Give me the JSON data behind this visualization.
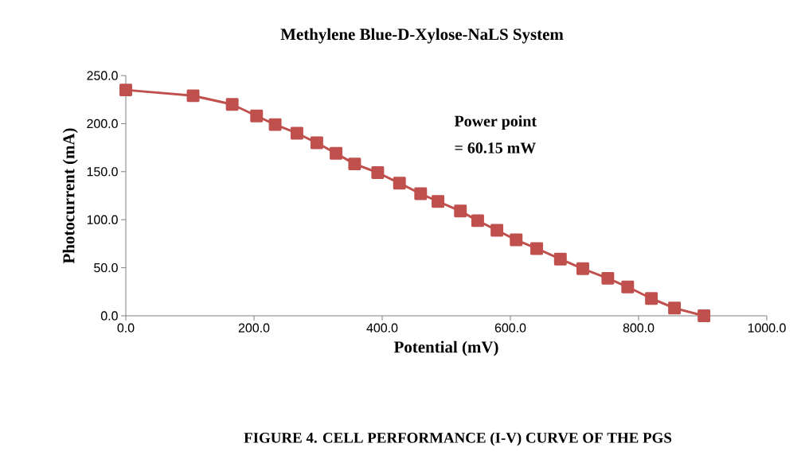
{
  "chart_data": {
    "type": "line",
    "title": "Methylene Blue-D-Xylose-NaLS System",
    "xlabel": "Potential (mV)",
    "ylabel": "Photocurrent (mA)",
    "annotations": [
      "Power point",
      "= 60.15 mW",
      "FIGURE 4.  CELL PERFORMANCE (I-V) CURVE OF THE PGS"
    ],
    "x": [
      0,
      105,
      166,
      204,
      233,
      267,
      298,
      328,
      357,
      393,
      427,
      460,
      487,
      522,
      549,
      579,
      609,
      641,
      678,
      713,
      752,
      783,
      820,
      856,
      902
    ],
    "series": [
      {
        "color": "#c0504d",
        "values": [
          235,
          229,
          220,
          208,
          199,
          190,
          180,
          169,
          158,
          149,
          138,
          127,
          119,
          109,
          99,
          89,
          79,
          70,
          59,
          49,
          39,
          30,
          18,
          8,
          0
        ]
      }
    ],
    "xlim": [
      0,
      1000
    ],
    "ylim": [
      0,
      250
    ],
    "xticks": [
      {
        "value": 0,
        "label": "0.0"
      },
      {
        "value": 200,
        "label": "200.0"
      },
      {
        "value": 400,
        "label": "400.0"
      },
      {
        "value": 600,
        "label": "600.0"
      },
      {
        "value": 800,
        "label": "800.0"
      },
      {
        "value": 1000,
        "label": "1000.0"
      }
    ],
    "yticks": [
      {
        "value": 0,
        "label": "0.0"
      },
      {
        "value": 50,
        "label": "50.0"
      },
      {
        "value": 100,
        "label": "100.0"
      },
      {
        "value": 150,
        "label": "150.0"
      },
      {
        "value": 200,
        "label": "200.0"
      },
      {
        "value": 250,
        "label": "250.0"
      }
    ],
    "marker": "square",
    "line_style": "solid",
    "grid": false,
    "legend": false
  }
}
